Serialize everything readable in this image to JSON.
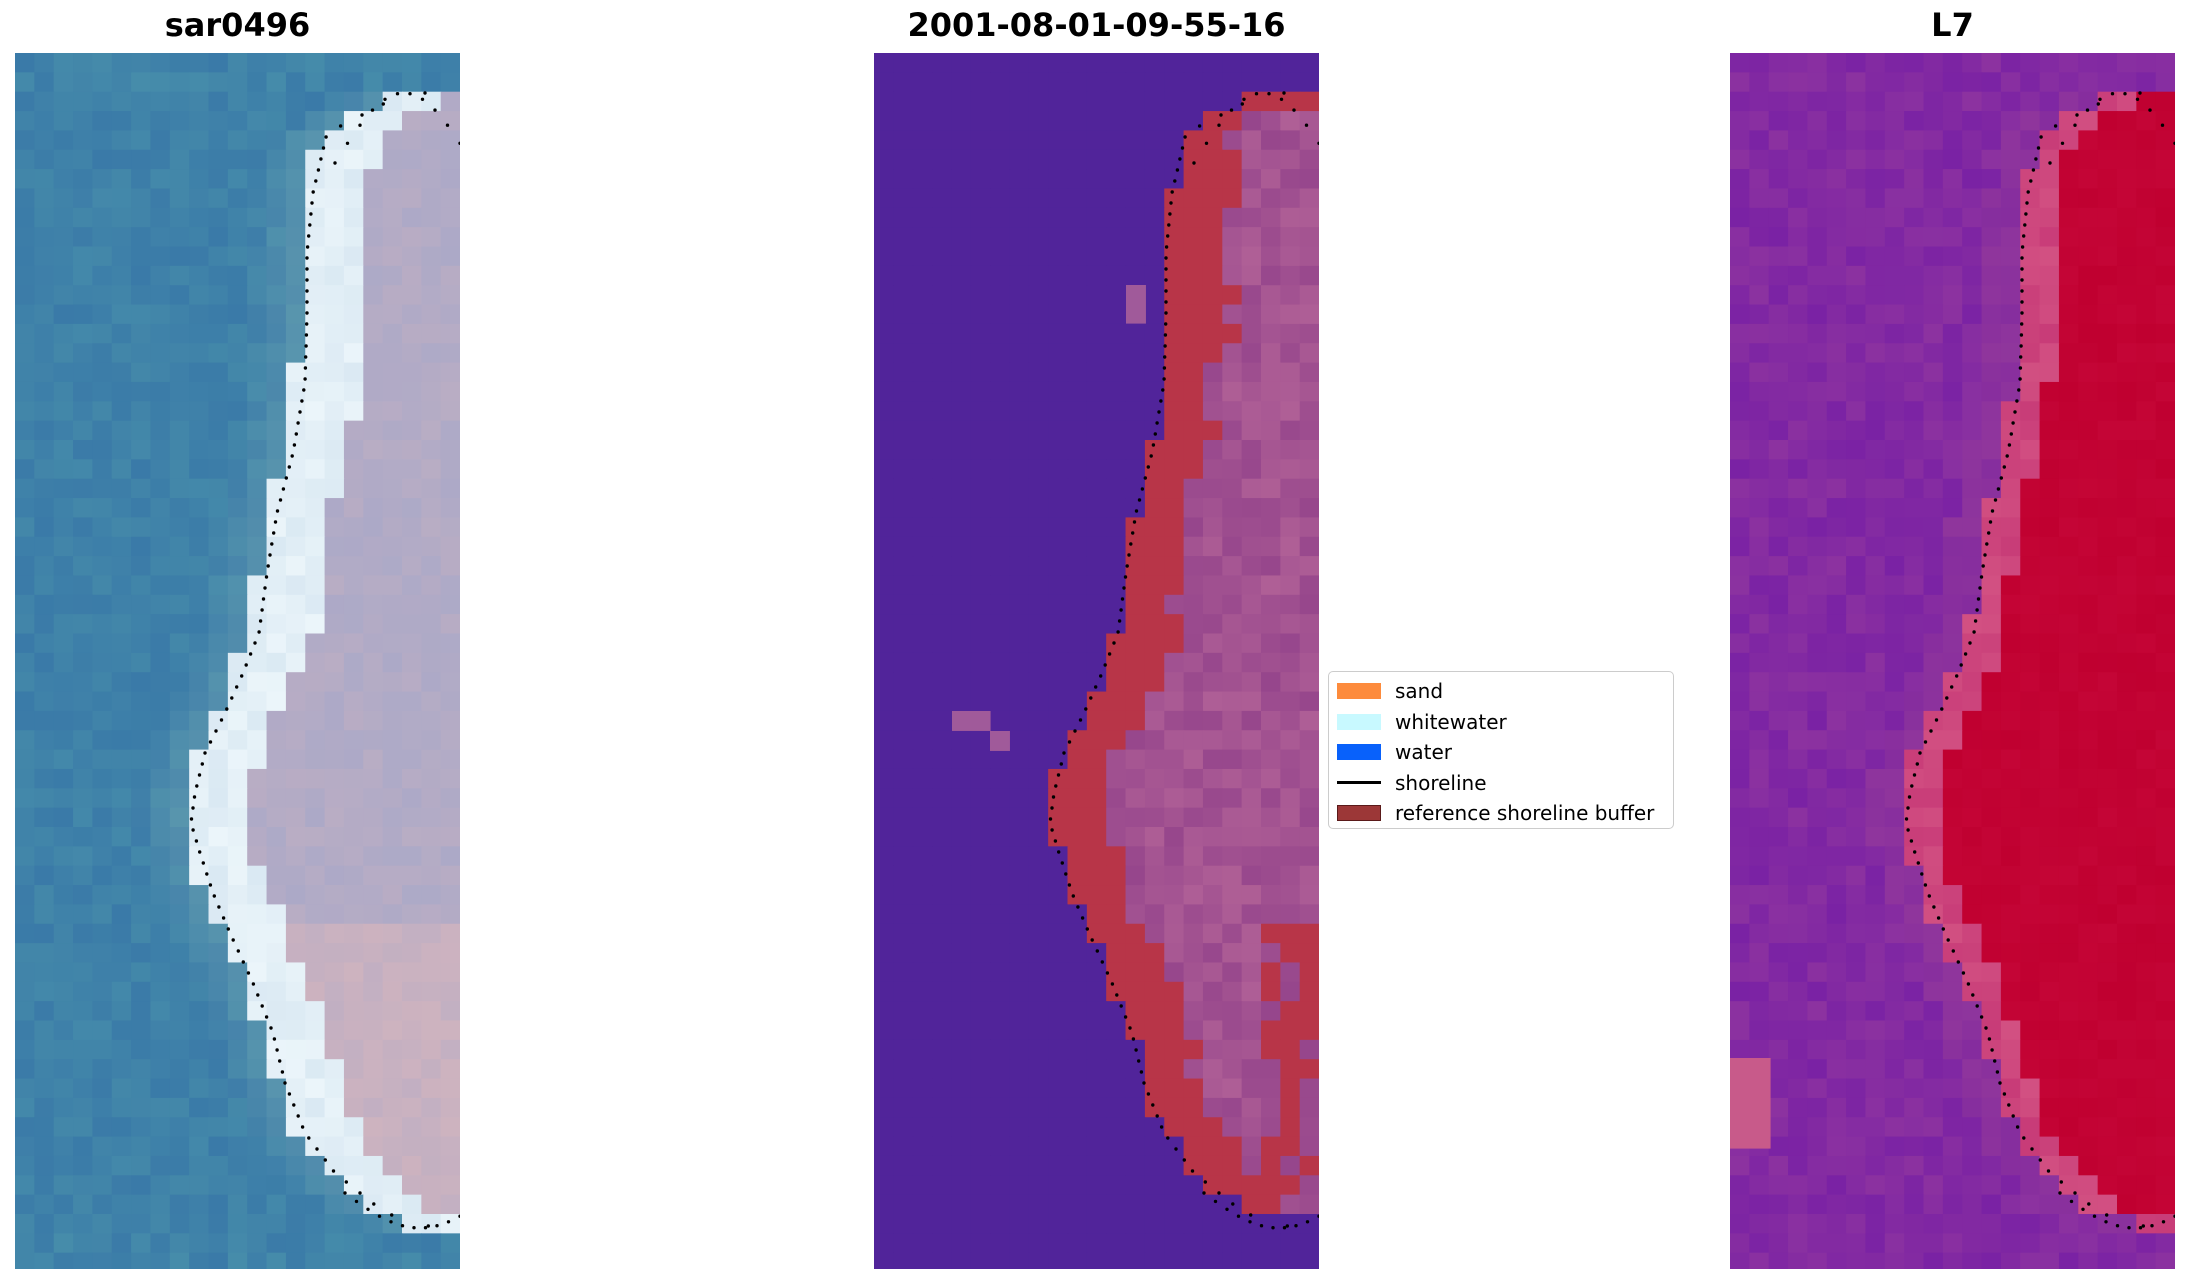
{
  "panels": [
    {
      "title": "sar0496",
      "kind": "rgb"
    },
    {
      "title": "2001-08-01-09-55-16",
      "kind": "classified"
    },
    {
      "title": "L7",
      "kind": "index"
    }
  ],
  "legend": {
    "items": [
      {
        "label": "sand",
        "color": "#fd8b3c",
        "type": "patch"
      },
      {
        "label": "whitewater",
        "color": "#c8f9ff",
        "type": "patch"
      },
      {
        "label": "water",
        "color": "#0861fb",
        "type": "patch"
      },
      {
        "label": "shoreline",
        "color": "#000000",
        "type": "line"
      },
      {
        "label": "reference shoreline buffer",
        "color": "#9c3737",
        "type": "patch",
        "edge": "#5a1a1a"
      }
    ]
  },
  "colors": {
    "water_rgb": "#3a7aa8",
    "water_class": "#51249a",
    "buffer_class": "#b83548",
    "land_class": "#9a4a8a",
    "index_low": "#7a22a4",
    "index_high": "#c00030",
    "shoreline": "#000000"
  }
}
